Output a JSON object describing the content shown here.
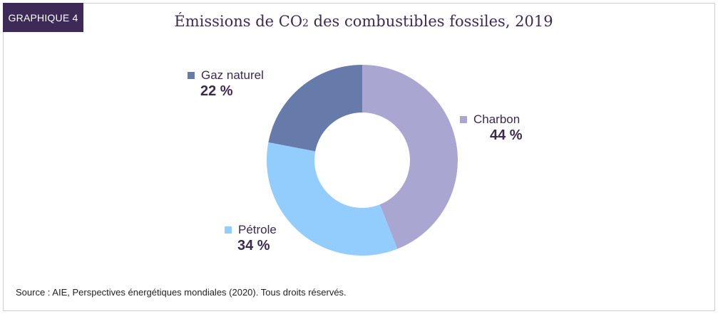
{
  "badge": "GRAPHIQUE 4",
  "title_pre": "Émissions de CO",
  "title_sub": "2",
  "title_post": " des combustibles fossiles, 2019",
  "source": "Source : AIE, Perspectives énergétiques mondiales (2020). Tous droits réservés.",
  "chart_data": {
    "type": "pie",
    "title": "Émissions de CO2 des combustibles fossiles, 2019",
    "donut": true,
    "slices": [
      {
        "name": "Charbon",
        "value": 44,
        "label": "44 %",
        "color": "#a9a6d2"
      },
      {
        "name": "Pétrole",
        "value": 34,
        "label": "34 %",
        "color": "#93cdfd"
      },
      {
        "name": "Gaz naturel",
        "value": 22,
        "label": "22 %",
        "color": "#677bab"
      }
    ],
    "start": "12 o'clock",
    "direction": "clockwise"
  }
}
